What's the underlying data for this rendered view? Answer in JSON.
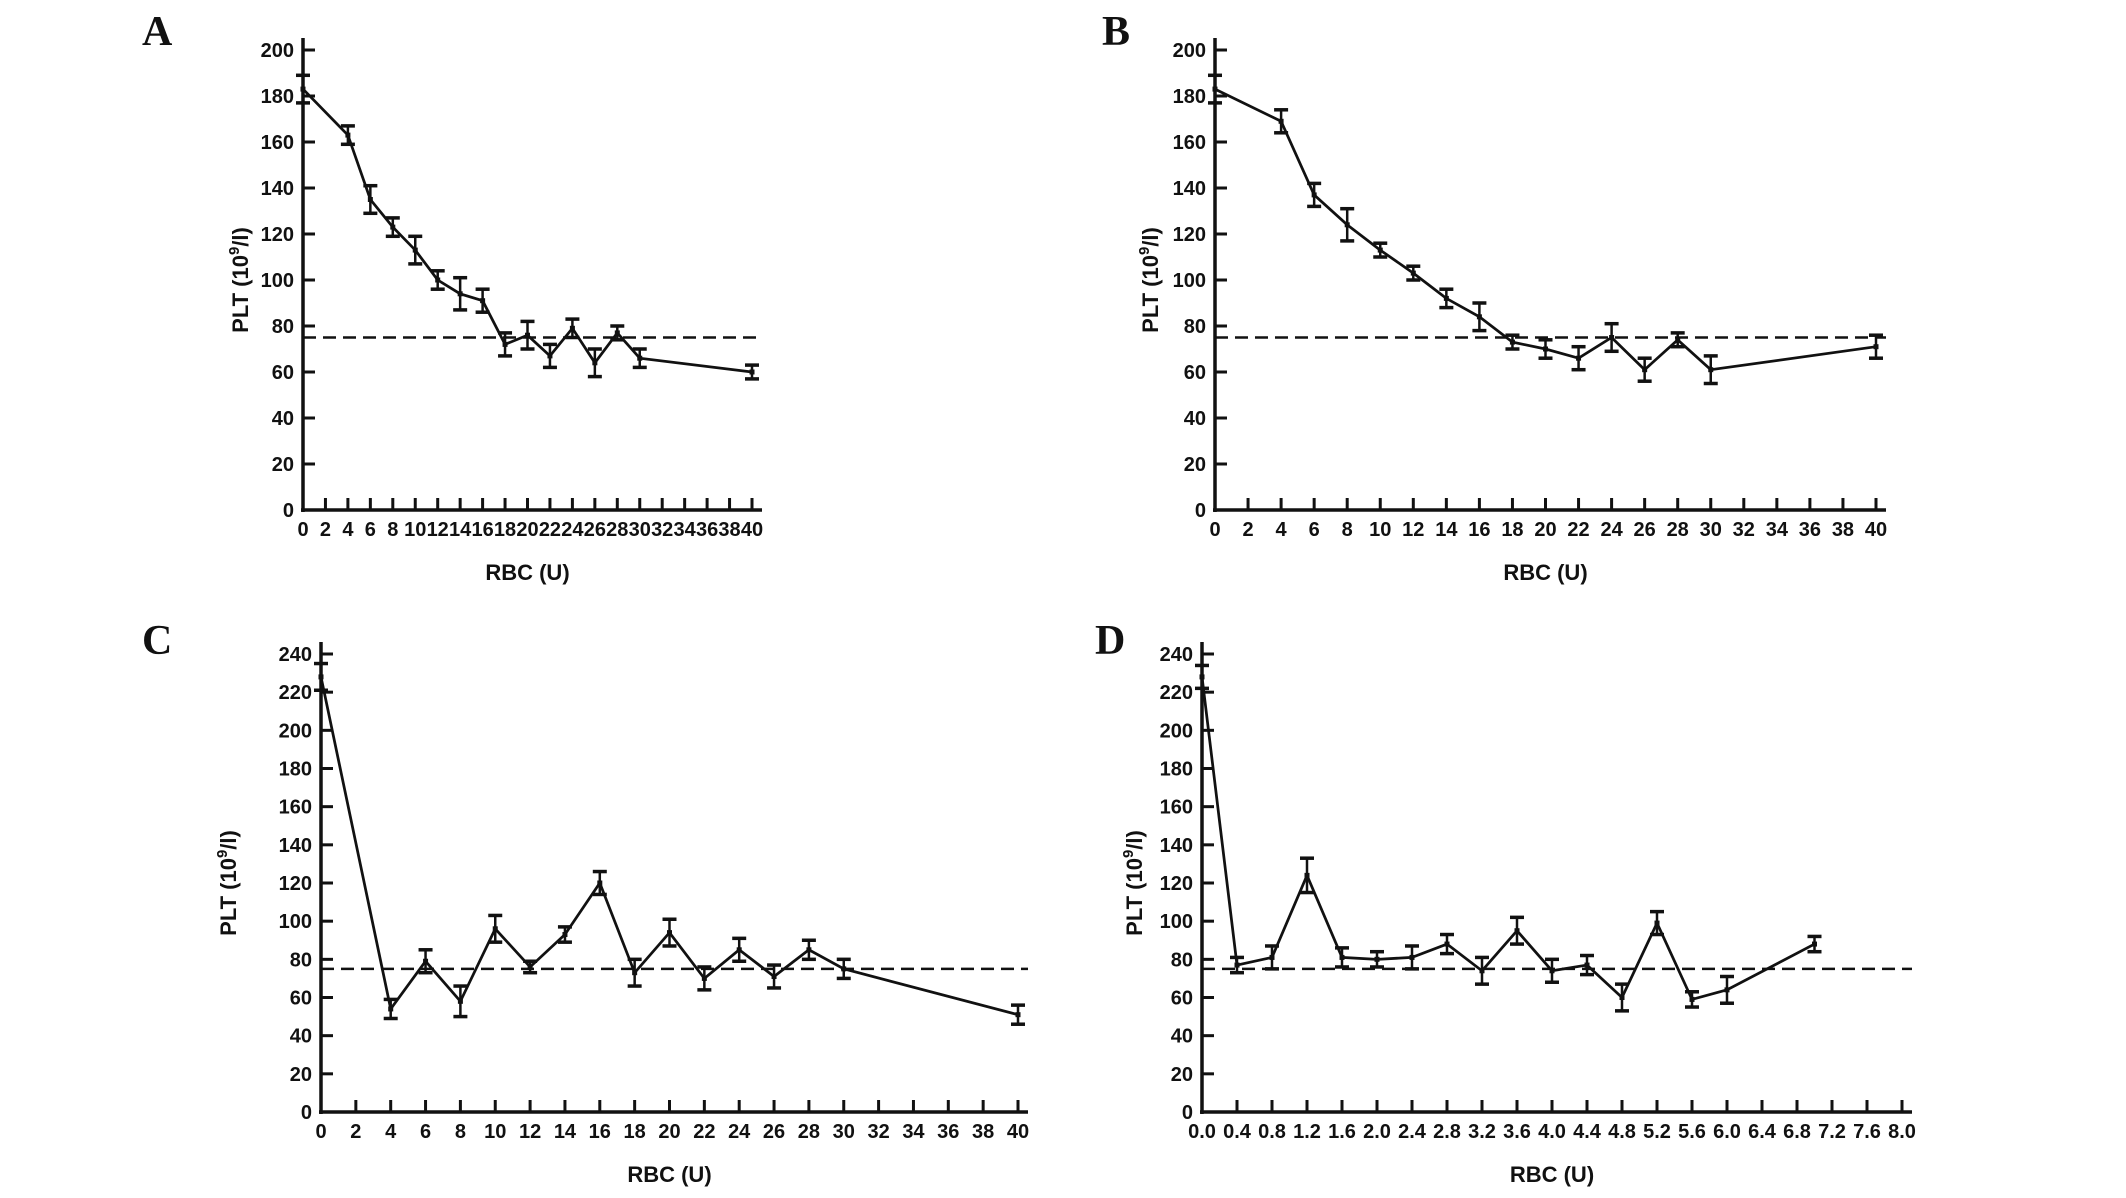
{
  "figure": {
    "background": "#ffffff",
    "ink_color": "#111111",
    "panels": [
      {
        "label": "A"
      },
      {
        "label": "B"
      },
      {
        "label": "C"
      },
      {
        "label": "D"
      }
    ]
  },
  "chart_data": [
    {
      "type": "line",
      "panel_label": "A",
      "xlabel": "RBC (U)",
      "ylabel": "PLT (10⁹/l)",
      "ylabel_parts": {
        "prefix": "PLT (10",
        "sup": "9",
        "suffix": "/l)"
      },
      "xlim": [
        0,
        40
      ],
      "ylim": [
        0,
        200
      ],
      "xtick_values": [
        0,
        2,
        4,
        6,
        8,
        10,
        12,
        14,
        16,
        18,
        20,
        22,
        24,
        26,
        28,
        30,
        32,
        34,
        36,
        38,
        40
      ],
      "xtick_labels": [
        "0",
        "2",
        "4",
        "6",
        "8",
        "10",
        "12",
        "14",
        "16",
        "18",
        "20",
        "22",
        "24",
        "26",
        "28",
        "30",
        "32",
        "34",
        "36",
        "38",
        "40"
      ],
      "ytick_values": [
        0,
        20,
        40,
        60,
        80,
        100,
        120,
        140,
        160,
        180,
        200
      ],
      "ytick_labels": [
        "0",
        "20",
        "40",
        "60",
        "80",
        "100",
        "120",
        "140",
        "160",
        "180",
        "200"
      ],
      "dashed_reference_y": 75,
      "grid": false,
      "legend": null,
      "x": [
        0,
        4,
        6,
        8,
        10,
        12,
        14,
        16,
        18,
        20,
        22,
        24,
        26,
        28,
        30,
        40
      ],
      "y": [
        183,
        163,
        135,
        123,
        113,
        100,
        94,
        91,
        72,
        76,
        67,
        79,
        64,
        77,
        66,
        60
      ],
      "err": [
        6,
        4,
        6,
        4,
        6,
        4,
        7,
        5,
        5,
        6,
        5,
        4,
        6,
        3,
        4,
        3
      ],
      "line_color": "#111111"
    },
    {
      "type": "line",
      "panel_label": "B",
      "xlabel": "RBC (U)",
      "ylabel": "PLT (10⁹/l)",
      "ylabel_parts": {
        "prefix": "PLT (10",
        "sup": "9",
        "suffix": "/l)"
      },
      "xlim": [
        0,
        40
      ],
      "ylim": [
        0,
        200
      ],
      "xtick_values": [
        0,
        2,
        4,
        6,
        8,
        10,
        12,
        14,
        16,
        18,
        20,
        22,
        24,
        26,
        28,
        30,
        32,
        34,
        36,
        38,
        40
      ],
      "xtick_labels": [
        "0",
        "2",
        "4",
        "6",
        "8",
        "10",
        "12",
        "14",
        "16",
        "18",
        "20",
        "22",
        "24",
        "26",
        "28",
        "30",
        "32",
        "34",
        "36",
        "38",
        "40"
      ],
      "ytick_values": [
        0,
        20,
        40,
        60,
        80,
        100,
        120,
        140,
        160,
        180,
        200
      ],
      "ytick_labels": [
        "0",
        "20",
        "40",
        "60",
        "80",
        "100",
        "120",
        "140",
        "160",
        "180",
        "200"
      ],
      "dashed_reference_y": 75,
      "grid": false,
      "legend": null,
      "x": [
        0,
        4,
        6,
        8,
        10,
        12,
        14,
        16,
        18,
        20,
        22,
        24,
        26,
        28,
        30,
        40
      ],
      "y": [
        183,
        169,
        137,
        124,
        113,
        103,
        92,
        84,
        73,
        70,
        66,
        75,
        61,
        74,
        61,
        71
      ],
      "err": [
        6,
        5,
        5,
        7,
        3,
        3,
        4,
        6,
        3,
        4,
        5,
        6,
        5,
        3,
        6,
        5
      ],
      "line_color": "#111111"
    },
    {
      "type": "line",
      "panel_label": "C",
      "xlabel": "RBC (U)",
      "ylabel": "PLT (10⁹/l)",
      "ylabel_parts": {
        "prefix": "PLT (10",
        "sup": "9",
        "suffix": "/l)"
      },
      "xlim": [
        0,
        40
      ],
      "ylim": [
        0,
        240
      ],
      "xtick_values": [
        0,
        2,
        4,
        6,
        8,
        10,
        12,
        14,
        16,
        18,
        20,
        22,
        24,
        26,
        28,
        30,
        32,
        34,
        36,
        38,
        40
      ],
      "xtick_labels": [
        "0",
        "2",
        "4",
        "6",
        "8",
        "10",
        "12",
        "14",
        "16",
        "18",
        "20",
        "22",
        "24",
        "26",
        "28",
        "30",
        "32",
        "34",
        "36",
        "38",
        "40"
      ],
      "ytick_values": [
        0,
        20,
        40,
        60,
        80,
        100,
        120,
        140,
        160,
        180,
        200,
        220,
        240
      ],
      "ytick_labels": [
        "0",
        "20",
        "40",
        "60",
        "80",
        "100",
        "120",
        "140",
        "160",
        "180",
        "200",
        "220",
        "240"
      ],
      "dashed_reference_y": 75,
      "grid": false,
      "legend": null,
      "x": [
        0,
        4,
        6,
        8,
        10,
        12,
        14,
        16,
        18,
        20,
        22,
        24,
        26,
        28,
        30,
        40
      ],
      "y": [
        228,
        54,
        79,
        58,
        96,
        76,
        93,
        120,
        73,
        94,
        70,
        85,
        71,
        85,
        75,
        51
      ],
      "err": [
        7,
        5,
        6,
        8,
        7,
        3,
        4,
        6,
        7,
        7,
        6,
        6,
        6,
        5,
        5,
        5
      ],
      "line_color": "#111111"
    },
    {
      "type": "line",
      "panel_label": "D",
      "xlabel": "RBC (U)",
      "ylabel": "PLT (10⁹/l)",
      "ylabel_parts": {
        "prefix": "PLT (10",
        "sup": "9",
        "suffix": "/l)"
      },
      "xlim": [
        0,
        8
      ],
      "ylim": [
        0,
        240
      ],
      "xtick_values": [
        0,
        0.4,
        0.8,
        1.2,
        1.6,
        2.0,
        2.4,
        2.8,
        3.2,
        3.6,
        4.0,
        4.4,
        4.8,
        5.2,
        5.6,
        6.0,
        6.4,
        6.8,
        7.2,
        7.6,
        8.0
      ],
      "xtick_labels": [
        "0.0",
        "0.4",
        "0.8",
        "1.2",
        "1.6",
        "2.0",
        "2.4",
        "2.8",
        "3.2",
        "3.6",
        "4.0",
        "4.4",
        "4.8",
        "5.2",
        "5.6",
        "6.0",
        "6.4",
        "6.8",
        "7.2",
        "7.6",
        "8.0"
      ],
      "ytick_values": [
        0,
        20,
        40,
        60,
        80,
        100,
        120,
        140,
        160,
        180,
        200,
        220,
        240
      ],
      "ytick_labels": [
        "0",
        "20",
        "40",
        "60",
        "80",
        "100",
        "120",
        "140",
        "160",
        "180",
        "200",
        "220",
        "240"
      ],
      "dashed_reference_y": 75,
      "grid": false,
      "legend": null,
      "x": [
        0,
        0.4,
        0.8,
        1.2,
        1.6,
        2.0,
        2.4,
        2.8,
        3.2,
        3.6,
        4.0,
        4.4,
        4.8,
        5.2,
        5.6,
        6.0,
        7.0
      ],
      "y": [
        228,
        77,
        81,
        124,
        81,
        80,
        81,
        88,
        74,
        95,
        74,
        77,
        60,
        99,
        59,
        64,
        88
      ],
      "err": [
        6,
        4,
        6,
        9,
        5,
        4,
        6,
        5,
        7,
        7,
        6,
        5,
        7,
        6,
        4,
        7,
        4
      ],
      "line_color": "#111111"
    }
  ]
}
